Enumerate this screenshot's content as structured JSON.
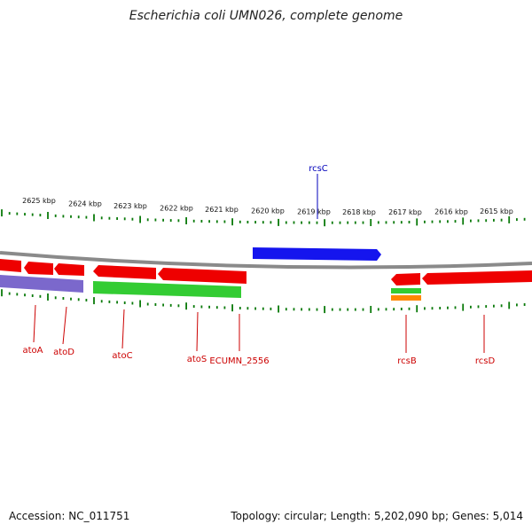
{
  "title": "Escherichia coli UMN026, complete genome",
  "footer": {
    "accession": "Accession: NC_011751",
    "summary": "Topology: circular; Length: 5,202,090 bp; Genes: 5,014"
  },
  "colors": {
    "backbone": "#8a8a8a",
    "tick": "#0a7a0a",
    "gene_red": "#ee0000",
    "gene_blue": "#1515ee",
    "gene_green": "#33cc33",
    "gene_purple": "#7b68cc",
    "gene_orange": "#ff8800",
    "label_red": "#cc0000",
    "label_blue": "#0000bb"
  },
  "scale_labels": [
    "2625 kbp",
    "2624 kbp",
    "2623 kbp",
    "2622 kbp",
    "2621 kbp",
    "2620 kbp",
    "2619 kbp",
    "2618 kbp",
    "2617 kbp",
    "2616 kbp",
    "2615 kbp"
  ],
  "genes": {
    "rcsC": "rcsC",
    "atoA": "atoA",
    "atoD": "atoD",
    "atoC": "atoC",
    "atoS": "atoS",
    "ECUMN_2556": "ECUMN_2556",
    "rcsB": "rcsB",
    "rcsD": "rcsD"
  }
}
